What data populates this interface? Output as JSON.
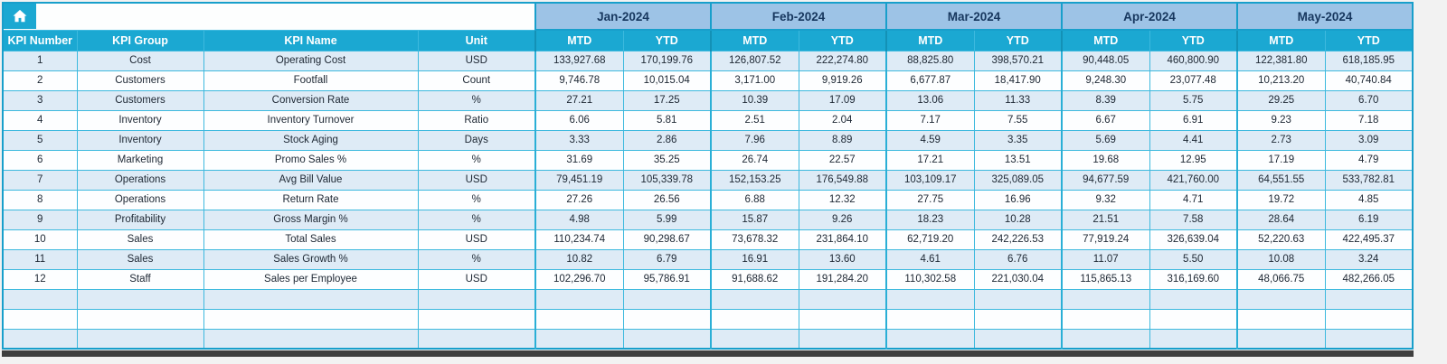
{
  "table": {
    "months": [
      "Jan-2024",
      "Feb-2024",
      "Mar-2024",
      "Apr-2024",
      "May-2024"
    ],
    "left_headers": [
      "KPI Number",
      "KPI Group",
      "KPI Name",
      "Unit"
    ],
    "period_headers": [
      "MTD",
      "YTD"
    ],
    "rows": [
      {
        "number": "1",
        "group": "Cost",
        "name": "Operating Cost",
        "unit": "USD",
        "values": [
          "133,927.68",
          "170,199.76",
          "126,807.52",
          "222,274.80",
          "88,825.80",
          "398,570.21",
          "90,448.05",
          "460,800.90",
          "122,381.80",
          "618,185.95"
        ]
      },
      {
        "number": "2",
        "group": "Customers",
        "name": "Footfall",
        "unit": "Count",
        "values": [
          "9,746.78",
          "10,015.04",
          "3,171.00",
          "9,919.26",
          "6,677.87",
          "18,417.90",
          "9,248.30",
          "23,077.48",
          "10,213.20",
          "40,740.84"
        ]
      },
      {
        "number": "3",
        "group": "Customers",
        "name": "Conversion Rate",
        "unit": "%",
        "values": [
          "27.21",
          "17.25",
          "10.39",
          "17.09",
          "13.06",
          "11.33",
          "8.39",
          "5.75",
          "29.25",
          "6.70"
        ]
      },
      {
        "number": "4",
        "group": "Inventory",
        "name": "Inventory Turnover",
        "unit": "Ratio",
        "values": [
          "6.06",
          "5.81",
          "2.51",
          "2.04",
          "7.17",
          "7.55",
          "6.67",
          "6.91",
          "9.23",
          "7.18"
        ]
      },
      {
        "number": "5",
        "group": "Inventory",
        "name": "Stock Aging",
        "unit": "Days",
        "values": [
          "3.33",
          "2.86",
          "7.96",
          "8.89",
          "4.59",
          "3.35",
          "5.69",
          "4.41",
          "2.73",
          "3.09"
        ]
      },
      {
        "number": "6",
        "group": "Marketing",
        "name": "Promo Sales %",
        "unit": "%",
        "values": [
          "31.69",
          "35.25",
          "26.74",
          "22.57",
          "17.21",
          "13.51",
          "19.68",
          "12.95",
          "17.19",
          "4.79"
        ]
      },
      {
        "number": "7",
        "group": "Operations",
        "name": "Avg Bill Value",
        "unit": "USD",
        "values": [
          "79,451.19",
          "105,339.78",
          "152,153.25",
          "176,549.88",
          "103,109.17",
          "325,089.05",
          "94,677.59",
          "421,760.00",
          "64,551.55",
          "533,782.81"
        ]
      },
      {
        "number": "8",
        "group": "Operations",
        "name": "Return Rate",
        "unit": "%",
        "values": [
          "27.26",
          "26.56",
          "6.88",
          "12.32",
          "27.75",
          "16.96",
          "9.32",
          "4.71",
          "19.72",
          "4.85"
        ]
      },
      {
        "number": "9",
        "group": "Profitability",
        "name": "Gross Margin %",
        "unit": "%",
        "values": [
          "4.98",
          "5.99",
          "15.87",
          "9.26",
          "18.23",
          "10.28",
          "21.51",
          "7.58",
          "28.64",
          "6.19"
        ]
      },
      {
        "number": "10",
        "group": "Sales",
        "name": "Total Sales",
        "unit": "USD",
        "values": [
          "110,234.74",
          "90,298.67",
          "73,678.32",
          "231,864.10",
          "62,719.20",
          "242,226.53",
          "77,919.24",
          "326,639.04",
          "52,220.63",
          "422,495.37"
        ]
      },
      {
        "number": "11",
        "group": "Sales",
        "name": "Sales Growth %",
        "unit": "%",
        "values": [
          "10.82",
          "6.79",
          "16.91",
          "13.60",
          "4.61",
          "6.76",
          "11.07",
          "5.50",
          "10.08",
          "3.24"
        ]
      },
      {
        "number": "12",
        "group": "Staff",
        "name": "Sales per Employee",
        "unit": "USD",
        "values": [
          "102,296.70",
          "95,786.91",
          "91,688.62",
          "191,284.20",
          "110,302.58",
          "221,030.04",
          "115,865.13",
          "316,169.60",
          "48,066.75",
          "482,266.05"
        ]
      }
    ],
    "empty_row_count": 3
  },
  "colors": {
    "header_cyan": "#1BA8D2",
    "month_blue": "#9DC3E6",
    "band_blue": "#DEEBF6",
    "grid_cyan": "#3DB9DE",
    "header_text": "#FFFFFF",
    "month_text": "#17375E",
    "data_text": "#1D2733",
    "dark_bar": "#3F3F3F"
  }
}
